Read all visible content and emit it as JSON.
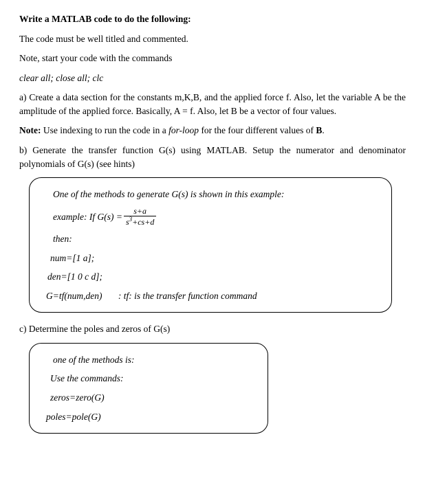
{
  "title": "Write a MATLAB code to do the following:",
  "p1": "The code must be well titled and commented.",
  "p2": "Note, start your code with the commands",
  "p3": "clear all; close all; clc",
  "p4a": "a) Create a data section for the constants m,K,B, and the applied force f.  Also, let the variable A be the amplitude of the applied force.  Basically, A = f.  Also, let B be a vector of four values.",
  "p5_pre": "Note:",
  "p5_mid": "  Use indexing to run the code in a ",
  "p5_it": "for-loop",
  "p5_post": " for the four different values of ",
  "p5_b": "B",
  "p5_dot": ".",
  "p6": "b) Generate the transfer function G(s) using MATLAB.  Setup the numerator and denominator polynomials of G(s) (see hints)",
  "box1": {
    "l1": "One of the methods to generate G(s) is shown in this example:",
    "l2_pre": "example: If G(s) = ",
    "frac_num": "s+a",
    "frac_den_a": "s",
    "frac_den_sup": "3",
    "frac_den_b": "+cs+d",
    "l3": "then:",
    "l4": "num=[1 a];",
    "l5": "den=[1 0 c d];",
    "l6a": "G=tf(num,den)",
    "l6b": ": tf: is the transfer function command"
  },
  "p7": "c) Determine the poles and zeros of G(s)",
  "box2": {
    "l1": "one of the methods is:",
    "l2": "Use the commands:",
    "l3": "zeros=zero(G)",
    "l4": "poles=pole(G)"
  }
}
